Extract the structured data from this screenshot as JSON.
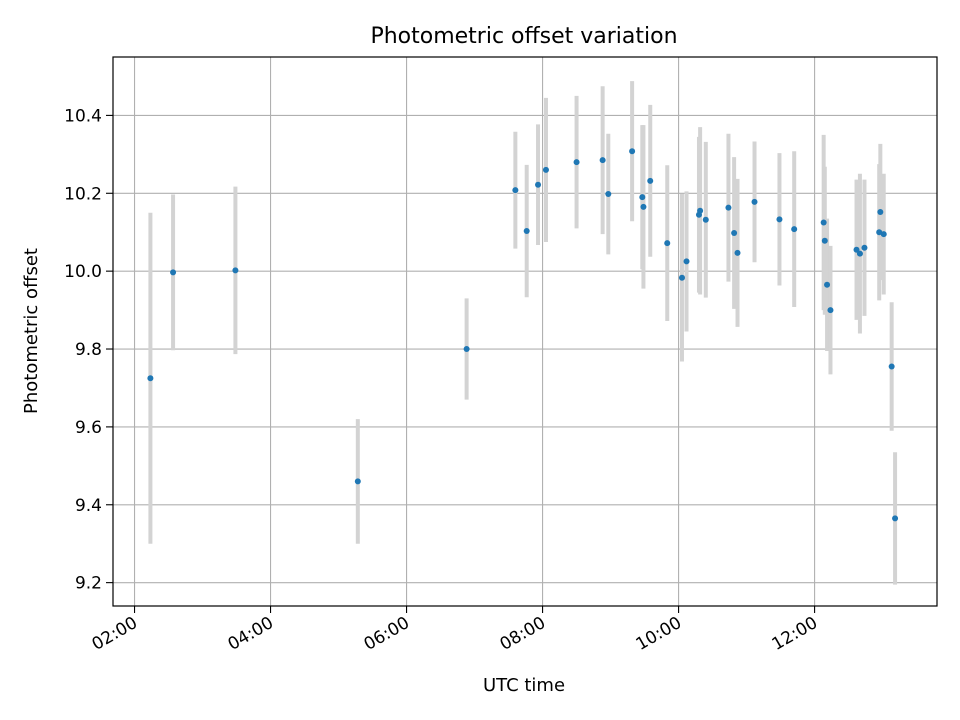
{
  "chart_data": {
    "type": "scatter",
    "title": "Photometric offset variation",
    "xlabel": "UTC time",
    "ylabel": "Photometric offset",
    "x_axis": {
      "format": "time",
      "range": [
        "01:41",
        "13:48"
      ],
      "ticks": [
        "02:00",
        "04:00",
        "06:00",
        "08:00",
        "10:00",
        "12:00"
      ]
    },
    "y_axis": {
      "range": [
        9.14,
        10.55
      ],
      "ticks": [
        "9.2",
        "9.4",
        "9.6",
        "9.8",
        "10.0",
        "10.2",
        "10.4"
      ]
    },
    "grid": true,
    "marker_color": "#1f77b4",
    "errorbar_color": "#d3d3d3",
    "points": [
      {
        "x": "02:14",
        "y": 9.725,
        "err": 0.425
      },
      {
        "x": "02:34",
        "y": 9.997,
        "err": 0.2
      },
      {
        "x": "03:29",
        "y": 10.002,
        "err": 0.215
      },
      {
        "x": "05:17",
        "y": 9.46,
        "err": 0.16
      },
      {
        "x": "06:53",
        "y": 9.8,
        "err": 0.13
      },
      {
        "x": "07:36",
        "y": 10.208,
        "err": 0.15
      },
      {
        "x": "07:46",
        "y": 10.103,
        "err": 0.17
      },
      {
        "x": "07:56",
        "y": 10.222,
        "err": 0.155
      },
      {
        "x": "08:03",
        "y": 10.26,
        "err": 0.185
      },
      {
        "x": "08:30",
        "y": 10.28,
        "err": 0.17
      },
      {
        "x": "08:53",
        "y": 10.285,
        "err": 0.19
      },
      {
        "x": "08:58",
        "y": 10.198,
        "err": 0.155
      },
      {
        "x": "09:19",
        "y": 10.308,
        "err": 0.18
      },
      {
        "x": "09:28",
        "y": 10.19,
        "err": 0.185
      },
      {
        "x": "09:29",
        "y": 10.165,
        "err": 0.21
      },
      {
        "x": "09:35",
        "y": 10.232,
        "err": 0.195
      },
      {
        "x": "09:50",
        "y": 10.072,
        "err": 0.2
      },
      {
        "x": "10:03",
        "y": 9.983,
        "err": 0.215
      },
      {
        "x": "10:07",
        "y": 10.025,
        "err": 0.18
      },
      {
        "x": "10:18",
        "y": 10.145,
        "err": 0.2
      },
      {
        "x": "10:19",
        "y": 10.155,
        "err": 0.215
      },
      {
        "x": "10:24",
        "y": 10.132,
        "err": 0.2
      },
      {
        "x": "10:44",
        "y": 10.163,
        "err": 0.19
      },
      {
        "x": "10:49",
        "y": 10.098,
        "err": 0.195
      },
      {
        "x": "10:52",
        "y": 10.047,
        "err": 0.19
      },
      {
        "x": "11:07",
        "y": 10.178,
        "err": 0.155
      },
      {
        "x": "11:29",
        "y": 10.133,
        "err": 0.17
      },
      {
        "x": "11:42",
        "y": 10.108,
        "err": 0.2
      },
      {
        "x": "12:08",
        "y": 10.125,
        "err": 0.225
      },
      {
        "x": "12:09",
        "y": 10.078,
        "err": 0.19
      },
      {
        "x": "12:11",
        "y": 9.965,
        "err": 0.17
      },
      {
        "x": "12:14",
        "y": 9.9,
        "err": 0.165
      },
      {
        "x": "12:37",
        "y": 10.055,
        "err": 0.18
      },
      {
        "x": "12:40",
        "y": 10.045,
        "err": 0.205
      },
      {
        "x": "12:44",
        "y": 10.06,
        "err": 0.175
      },
      {
        "x": "12:57",
        "y": 10.1,
        "err": 0.175
      },
      {
        "x": "12:58",
        "y": 10.152,
        "err": 0.175
      },
      {
        "x": "13:01",
        "y": 10.095,
        "err": 0.155
      },
      {
        "x": "13:08",
        "y": 9.755,
        "err": 0.165
      },
      {
        "x": "13:11",
        "y": 9.365,
        "err": 0.17
      }
    ]
  }
}
